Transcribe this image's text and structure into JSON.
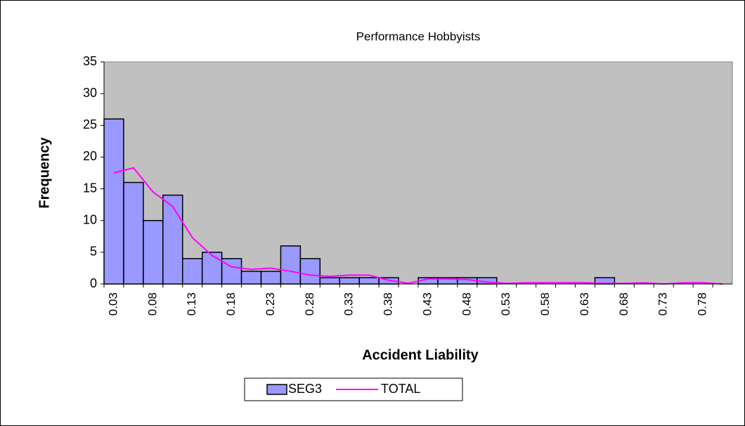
{
  "chart_data": {
    "type": "bar",
    "title": "Performance Hobbyists",
    "x_label": "Accident Liability",
    "y_label": "Frequency",
    "categories": [
      "0.03",
      null,
      "0.08",
      null,
      "0.13",
      null,
      "0.18",
      null,
      "0.23",
      null,
      "0.28",
      null,
      "0.33",
      null,
      "0.38",
      null,
      "0.43",
      null,
      "0.48",
      null,
      "0.53",
      null,
      "0.58",
      null,
      "0.63",
      null,
      "0.68",
      null,
      "0.73",
      null,
      "0.78",
      null
    ],
    "series": [
      {
        "name": "SEG3",
        "type": "bar",
        "color": "#9999ff",
        "values": [
          26,
          16,
          10,
          14,
          4,
          5,
          4,
          2,
          2,
          6,
          4,
          1,
          1,
          1,
          1,
          0,
          1,
          1,
          1,
          1,
          0,
          0,
          0,
          0,
          0,
          1,
          0,
          0,
          0,
          0,
          0,
          0
        ]
      },
      {
        "name": "TOTAL",
        "type": "line",
        "color": "#ff00ff",
        "values": [
          17.5,
          18.3,
          14.5,
          12.2,
          7.3,
          4.5,
          2.7,
          2.3,
          2.5,
          2.0,
          1.4,
          1.2,
          1.4,
          1.4,
          0.6,
          0.1,
          0.8,
          0.8,
          0.7,
          0.3,
          0.1,
          0.2,
          0.2,
          0.2,
          0.2,
          0.1,
          0.1,
          0.2,
          0,
          0.2,
          0.2,
          0
        ]
      }
    ],
    "ylim": [
      0,
      35
    ],
    "yticks": [
      0,
      5,
      10,
      15,
      20,
      25,
      30,
      35
    ],
    "plot_background": "#c0c0c0",
    "legend": "bottom"
  }
}
